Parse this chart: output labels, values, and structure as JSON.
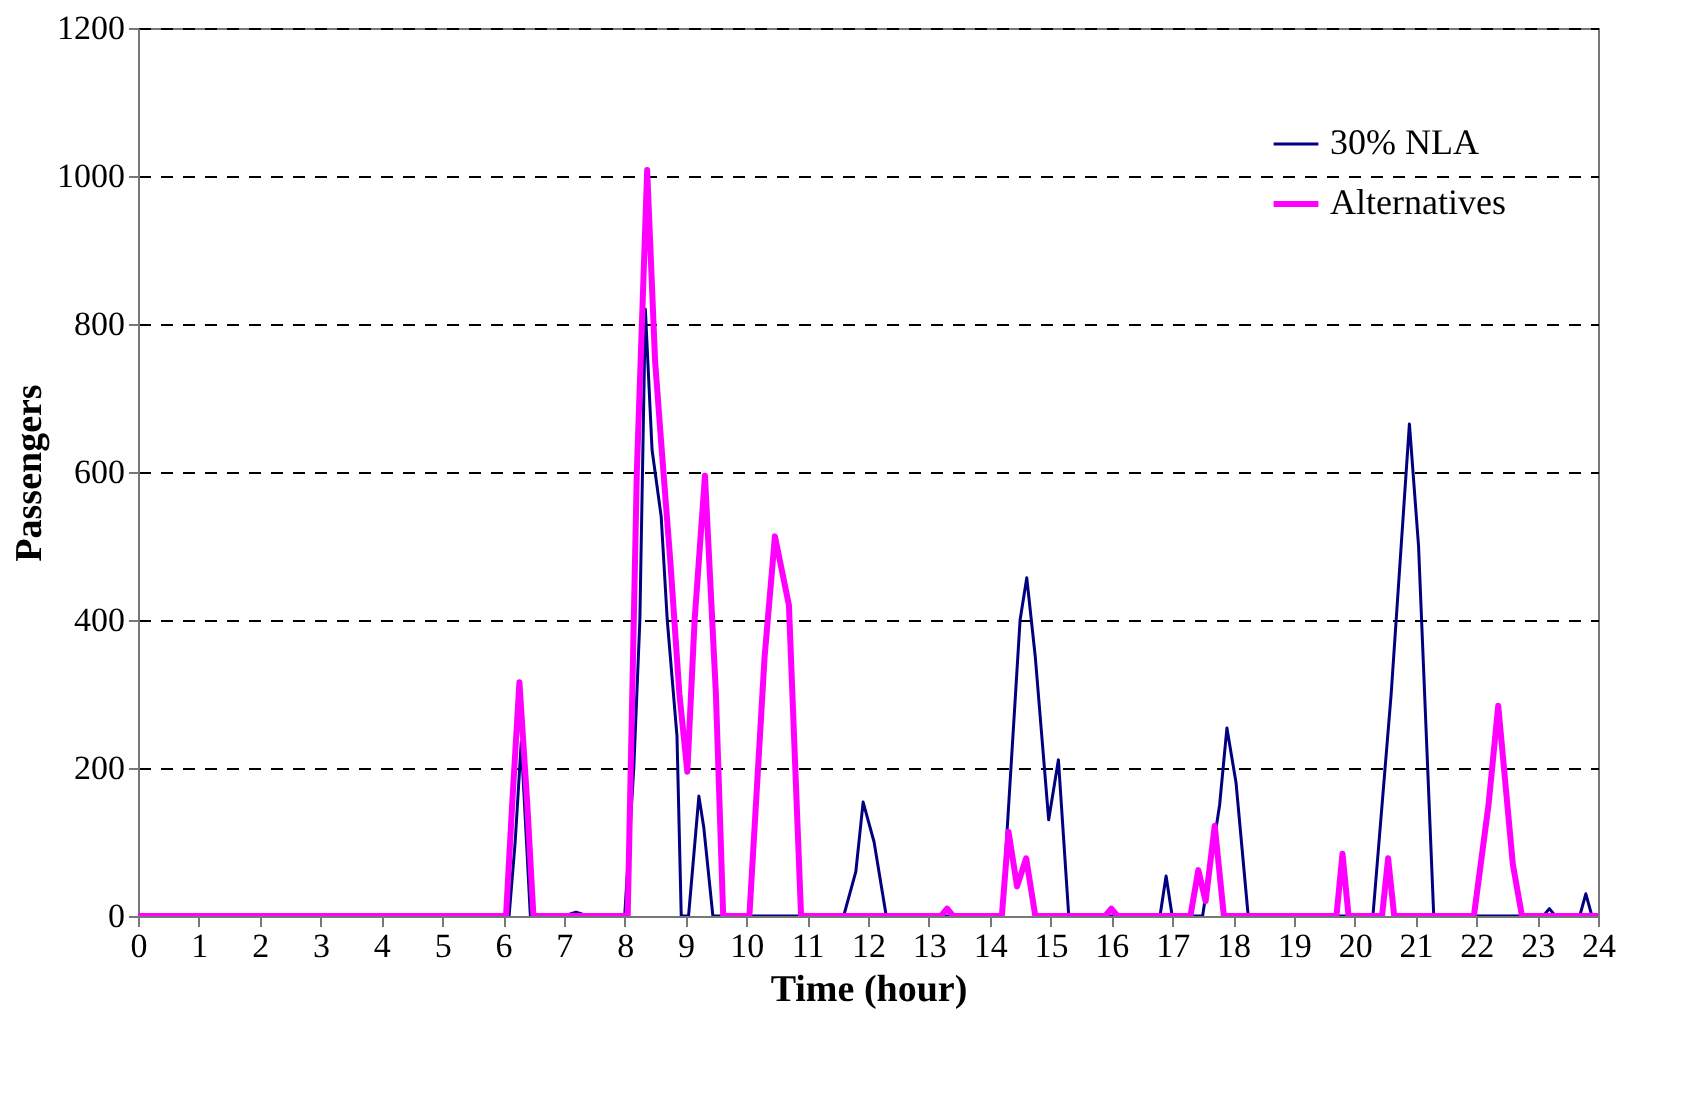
{
  "chart_data": {
    "type": "line",
    "xlabel": "Time (hour)",
    "ylabel": "Passengers",
    "xlim": [
      0,
      24
    ],
    "ylim": [
      0,
      1200
    ],
    "xticks": [
      0,
      1,
      2,
      3,
      4,
      5,
      6,
      7,
      8,
      9,
      10,
      11,
      12,
      13,
      14,
      15,
      16,
      17,
      18,
      19,
      20,
      21,
      22,
      23,
      24
    ],
    "yticks": [
      0,
      200,
      400,
      600,
      800,
      1000,
      1200
    ],
    "grid": "y",
    "legend": "top right",
    "marker": "none",
    "line_style": "solid",
    "series": [
      {
        "name": "30% NLA",
        "color": "#000080",
        "x": [
          0,
          6.1,
          6.2,
          6.3,
          6.45,
          7.0,
          7.2,
          7.4,
          8.0,
          8.15,
          8.25,
          8.34,
          8.45,
          8.6,
          8.7,
          8.86,
          8.93,
          9.05,
          9.22,
          9.3,
          9.45,
          11.6,
          11.8,
          11.92,
          12.1,
          12.3,
          14.2,
          14.35,
          14.5,
          14.61,
          14.75,
          14.97,
          15.13,
          15.3,
          16.8,
          16.9,
          17.0,
          17.5,
          17.78,
          17.9,
          18.05,
          18.25,
          20.3,
          20.6,
          20.9,
          21.05,
          21.3,
          23.1,
          23.2,
          23.3,
          23.7,
          23.8,
          23.9,
          24
        ],
        "values": [
          0,
          0,
          100,
          235,
          0,
          0,
          5,
          0,
          0,
          200,
          400,
          820,
          630,
          540,
          400,
          243,
          0,
          0,
          162,
          120,
          0,
          0,
          60,
          154,
          100,
          0,
          0,
          200,
          400,
          457,
          350,
          130,
          211,
          0,
          0,
          54,
          0,
          0,
          150,
          254,
          180,
          0,
          0,
          300,
          665,
          500,
          0,
          0,
          10,
          0,
          0,
          30,
          0,
          0
        ]
      },
      {
        "name": "Alternatives",
        "color": "#ff00ff",
        "x": [
          0,
          6.05,
          6.15,
          6.27,
          6.4,
          6.5,
          8.05,
          8.2,
          8.37,
          8.5,
          8.6,
          8.75,
          8.9,
          9.03,
          9.15,
          9.32,
          9.5,
          9.62,
          10.05,
          10.3,
          10.47,
          10.7,
          10.9,
          13.2,
          13.3,
          13.4,
          14.2,
          14.31,
          14.45,
          14.6,
          14.75,
          15.9,
          16.0,
          16.1,
          17.3,
          17.43,
          17.55,
          17.7,
          17.85,
          19.7,
          19.8,
          19.9,
          20.45,
          20.55,
          20.65,
          21.96,
          22.2,
          22.36,
          22.6,
          22.75,
          24
        ],
        "values": [
          0,
          0,
          150,
          316,
          150,
          0,
          0,
          600,
          1008,
          750,
          640,
          480,
          300,
          195,
          400,
          595,
          300,
          0,
          0,
          350,
          513,
          420,
          0,
          0,
          10,
          0,
          0,
          114,
          40,
          78,
          0,
          0,
          10,
          0,
          0,
          62,
          20,
          122,
          0,
          0,
          84,
          0,
          0,
          78,
          0,
          0,
          150,
          284,
          70,
          0,
          0
        ]
      }
    ]
  }
}
